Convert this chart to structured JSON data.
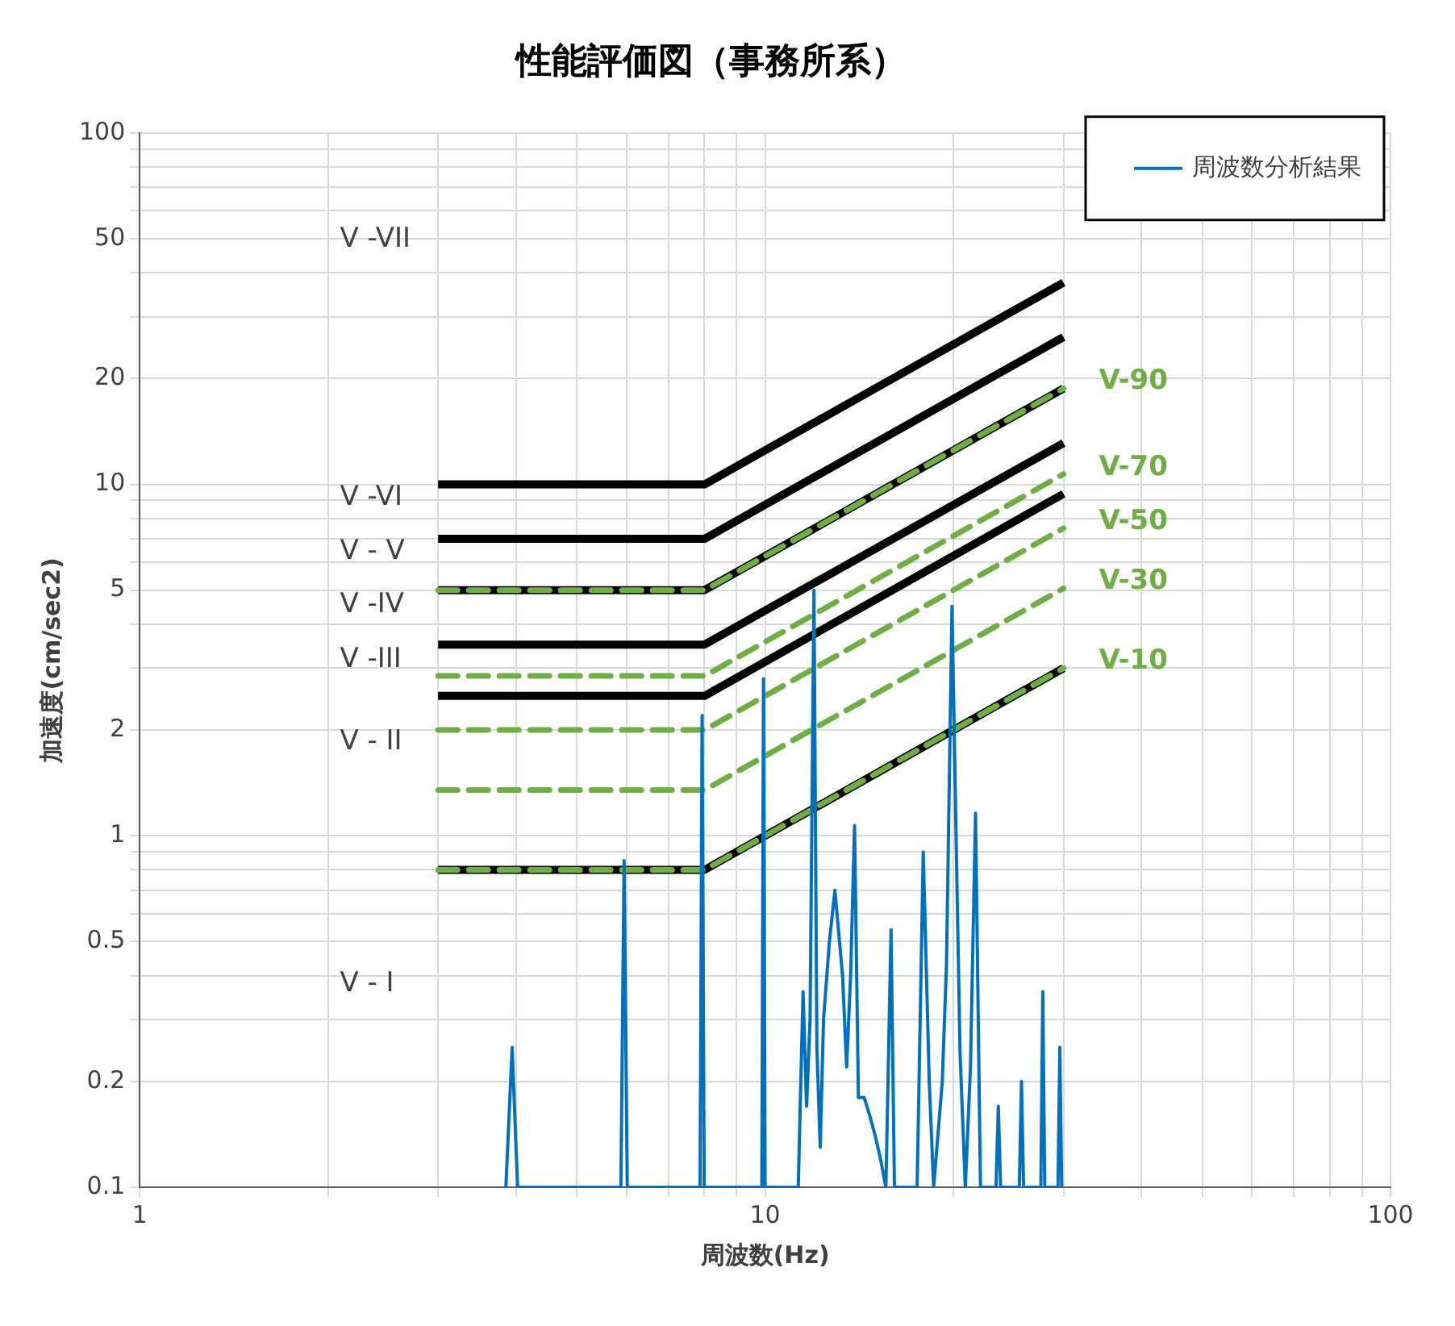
{
  "chart_data": {
    "type": "line",
    "title": "性能評価図（事務所系）",
    "xlabel": "周波数(Hz)",
    "ylabel": "加速度(cm/sec2)",
    "log": "xy",
    "grid": true,
    "legend": "top right",
    "marker": "none",
    "xlim": [
      1,
      100
    ],
    "ylim": [
      0.1,
      100
    ],
    "xticks": [
      1,
      {
        "value": 2,
        "label": null
      },
      {
        "value": 3,
        "label": null
      },
      {
        "value": 4,
        "label": null
      },
      {
        "value": 5,
        "label": null
      },
      {
        "value": 6,
        "label": null
      },
      {
        "value": 7,
        "label": null
      },
      {
        "value": 8,
        "label": null
      },
      {
        "value": 9,
        "label": null
      },
      10,
      {
        "value": 20,
        "label": null
      },
      {
        "value": 30,
        "label": null
      },
      {
        "value": 40,
        "label": null
      },
      {
        "value": 50,
        "label": null
      },
      {
        "value": 60,
        "label": null
      },
      {
        "value": 70,
        "label": null
      },
      {
        "value": 80,
        "label": null
      },
      {
        "value": 90,
        "label": null
      },
      100
    ],
    "yticks": [
      0.1,
      0.2,
      {
        "value": 0.3,
        "label": null
      },
      {
        "value": 0.4,
        "label": null
      },
      0.5,
      {
        "value": 0.6,
        "label": null
      },
      {
        "value": 0.7,
        "label": null
      },
      {
        "value": 0.8,
        "label": null
      },
      {
        "value": 0.9,
        "label": null
      },
      1,
      2,
      {
        "value": 3,
        "label": null
      },
      {
        "value": 4,
        "label": null
      },
      5,
      {
        "value": 6,
        "label": null
      },
      {
        "value": 7,
        "label": null
      },
      {
        "value": 8,
        "label": null
      },
      {
        "value": 9,
        "label": null
      },
      10,
      20,
      {
        "value": 30,
        "label": null
      },
      {
        "value": 40,
        "label": null
      },
      50,
      {
        "value": 60,
        "label": null
      },
      {
        "value": 70,
        "label": null
      },
      {
        "value": 80,
        "label": null
      },
      {
        "value": 90,
        "label": null
      },
      100
    ],
    "series": [
      {
        "name": "周波数分析結果",
        "color": "#0070c0",
        "x": [
          3.85,
          3.94,
          4.02,
          5.88,
          5.95,
          6.02,
          7.87,
          7.93,
          7.99,
          9.88,
          9.94,
          10.0,
          11.3,
          11.37,
          11.5,
          11.65,
          11.8,
          11.97,
          12.1,
          12.25,
          12.4,
          12.67,
          12.93,
          13.1,
          13.3,
          13.5,
          13.7,
          13.9,
          14.1,
          14.4,
          14.7,
          15.0,
          15.3,
          15.6,
          15.9,
          16.1,
          17.5,
          17.9,
          18.3,
          18.6,
          19.2,
          19.5,
          19.9,
          20.2,
          20.5,
          20.9,
          21.3,
          21.7,
          22.1,
          23.4,
          23.6,
          23.8,
          25.5,
          25.7,
          25.9,
          27.6,
          27.8,
          28.0,
          29.4,
          29.6,
          29.8
        ],
        "values": [
          0.1,
          0.25,
          0.1,
          0.1,
          0.85,
          0.1,
          0.1,
          2.2,
          0.1,
          0.1,
          2.8,
          0.1,
          0.1,
          0.16,
          0.36,
          0.17,
          0.3,
          5.0,
          0.25,
          0.13,
          0.3,
          0.5,
          0.7,
          0.54,
          0.4,
          0.22,
          0.4,
          1.07,
          0.18,
          0.18,
          0.16,
          0.14,
          0.12,
          0.1,
          0.54,
          0.1,
          0.1,
          0.9,
          0.2,
          0.1,
          0.2,
          0.43,
          4.5,
          1.0,
          0.24,
          0.1,
          0.22,
          1.16,
          0.1,
          0.1,
          0.17,
          0.1,
          0.1,
          0.2,
          0.1,
          0.1,
          0.36,
          0.1,
          0.1,
          0.25,
          0.1
        ]
      },
      {
        "color": "#70ad47",
        "line_style": "dashed",
        "x": [
          3,
          8,
          30
        ],
        "values": [
          5,
          5,
          18.75
        ]
      },
      {
        "color": "#70ad47",
        "line_style": "dashed",
        "x": [
          3,
          8,
          30
        ],
        "values": [
          2.85,
          2.85,
          10.7
        ]
      },
      {
        "color": "#70ad47",
        "line_style": "dashed",
        "x": [
          3,
          8,
          30
        ],
        "values": [
          2,
          2,
          7.5
        ]
      },
      {
        "color": "#70ad47",
        "line_style": "dashed",
        "x": [
          3,
          8,
          30
        ],
        "values": [
          1.35,
          1.35,
          5.06
        ]
      },
      {
        "color": "#70ad47",
        "line_style": "dashed",
        "x": [
          3,
          8,
          30
        ],
        "values": [
          0.8,
          0.8,
          3
        ]
      },
      {
        "color": "#000000",
        "line_style": "solid",
        "x": [
          3,
          8,
          30
        ],
        "values": [
          10,
          10,
          37.5
        ]
      },
      {
        "color": "#000000",
        "line_style": "solid",
        "x": [
          3,
          8,
          30
        ],
        "values": [
          7,
          7,
          26.25
        ]
      },
      {
        "color": "#000000",
        "line_style": "solid",
        "x": [
          3,
          8,
          30
        ],
        "values": [
          5,
          5,
          18.75
        ]
      },
      {
        "color": "#000000",
        "line_style": "solid",
        "x": [
          3,
          8,
          30
        ],
        "values": [
          3.5,
          3.5,
          13.1
        ]
      },
      {
        "color": "#000000",
        "line_style": "solid",
        "x": [
          3,
          8,
          30
        ],
        "values": [
          2.5,
          2.5,
          9.4
        ]
      },
      {
        "color": "#000000",
        "line_style": "solid",
        "x": [
          3,
          8,
          30
        ],
        "values": [
          0.8,
          0.8,
          3
        ]
      }
    ],
    "annotations": [
      "V -VII",
      "V -VI",
      "V - V",
      "V -IV",
      "V -III",
      "V - II",
      "V - I",
      "V-90",
      "V-70",
      "V-50",
      "V-30",
      "V-10"
    ]
  }
}
